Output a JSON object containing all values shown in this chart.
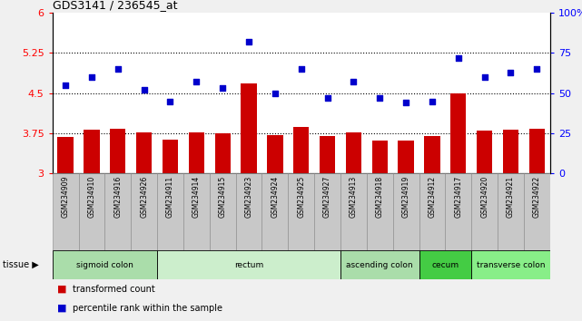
{
  "title": "GDS3141 / 236545_at",
  "samples": [
    "GSM234909",
    "GSM234910",
    "GSM234916",
    "GSM234926",
    "GSM234911",
    "GSM234914",
    "GSM234915",
    "GSM234923",
    "GSM234924",
    "GSM234925",
    "GSM234927",
    "GSM234913",
    "GSM234918",
    "GSM234919",
    "GSM234912",
    "GSM234917",
    "GSM234920",
    "GSM234921",
    "GSM234922"
  ],
  "bar_values": [
    3.68,
    3.82,
    3.84,
    3.76,
    3.63,
    3.76,
    3.75,
    4.68,
    3.72,
    3.87,
    3.7,
    3.76,
    3.62,
    3.61,
    3.7,
    4.5,
    3.8,
    3.82,
    3.84
  ],
  "dot_values": [
    55,
    60,
    65,
    52,
    45,
    57,
    53,
    82,
    50,
    65,
    47,
    57,
    47,
    44,
    45,
    72,
    60,
    63,
    65
  ],
  "ylim_left": [
    3.0,
    6.0
  ],
  "ylim_right": [
    0,
    100
  ],
  "yticks_left": [
    3.0,
    3.75,
    4.5,
    5.25,
    6.0
  ],
  "ytick_labels_left": [
    "3",
    "3.75",
    "4.5",
    "5.25",
    "6"
  ],
  "yticks_right": [
    0,
    25,
    50,
    75,
    100
  ],
  "ytick_labels_right": [
    "0",
    "25",
    "50",
    "75",
    "100%"
  ],
  "hlines": [
    3.75,
    4.5,
    5.25
  ],
  "bar_color": "#cc0000",
  "dot_color": "#0000cc",
  "tissue_groups": [
    {
      "label": "sigmoid colon",
      "start": 0,
      "end": 4,
      "color": "#aaddaa"
    },
    {
      "label": "rectum",
      "start": 4,
      "end": 11,
      "color": "#cceecc"
    },
    {
      "label": "ascending colon",
      "start": 11,
      "end": 14,
      "color": "#aaddaa"
    },
    {
      "label": "cecum",
      "start": 14,
      "end": 16,
      "color": "#44cc44"
    },
    {
      "label": "transverse colon",
      "start": 16,
      "end": 19,
      "color": "#88ee88"
    }
  ],
  "tissue_label": "tissue",
  "legend_bar_label": "transformed count",
  "legend_dot_label": "percentile rank within the sample",
  "bar_width": 0.6,
  "fig_bg": "#f0f0f0",
  "plot_bg": "#ffffff",
  "xtick_bg": "#c8c8c8"
}
